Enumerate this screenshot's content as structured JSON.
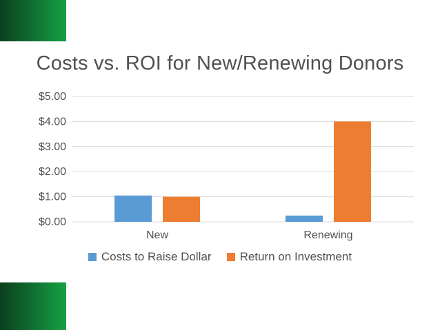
{
  "chart_data": {
    "type": "bar",
    "title": "Costs vs. ROI for New/Renewing Donors",
    "xlabel": "",
    "ylabel": "",
    "categories": [
      "New",
      "Renewing"
    ],
    "series": [
      {
        "name": "Costs to Raise Dollar",
        "values": [
          1.05,
          0.25
        ],
        "color": "#5B9BD5"
      },
      {
        "name": "Return on Investment",
        "values": [
          1.0,
          4.0
        ],
        "color": "#ED7D31"
      }
    ],
    "ylim": [
      0,
      5
    ],
    "yticks": [
      "$0.00",
      "$1.00",
      "$2.00",
      "$3.00",
      "$4.00",
      "$5.00"
    ],
    "grid": true,
    "legend_position": "bottom"
  },
  "theme": {
    "accent_green": "#0f6b2f",
    "gridline_color": "#d9d9d9",
    "text_color": "#505050"
  }
}
